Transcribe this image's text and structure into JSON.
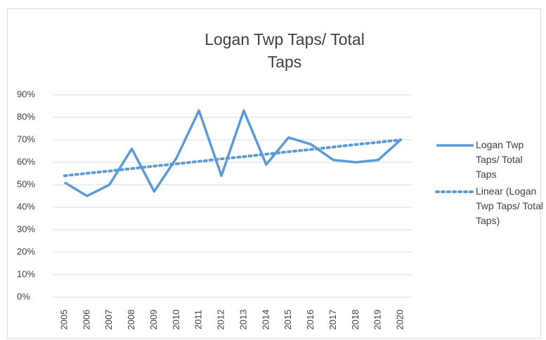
{
  "chart_data": {
    "type": "line",
    "title": "Logan Twp Taps/ Total Taps",
    "categories": [
      "2005",
      "2006",
      "2007",
      "2008",
      "2009",
      "2010",
      "2011",
      "2012",
      "2013",
      "2014",
      "2015",
      "2016",
      "2017",
      "2018",
      "2019",
      "2020"
    ],
    "series": [
      {
        "name": "Logan Twp Taps/ Total Taps",
        "color": "#5b9bd5",
        "values": [
          51,
          45,
          50,
          66,
          47,
          62,
          83,
          54,
          83,
          59,
          71,
          68,
          61,
          60,
          61,
          70
        ]
      },
      {
        "name": "Linear (Logan Twp Taps/ Total Taps)",
        "color": "#5b9bd5",
        "style": "dotted",
        "values": [
          54.0,
          55.1,
          56.1,
          57.2,
          58.3,
          59.3,
          60.4,
          61.5,
          62.5,
          63.6,
          64.7,
          65.7,
          66.8,
          67.9,
          68.9,
          70.0
        ]
      }
    ],
    "ylim": [
      0,
      90
    ],
    "yticks": [
      {
        "value": 0,
        "label": "0%"
      },
      {
        "value": 10,
        "label": "10%"
      },
      {
        "value": 20,
        "label": "20%"
      },
      {
        "value": 30,
        "label": "30%"
      },
      {
        "value": 40,
        "label": "40%"
      },
      {
        "value": 50,
        "label": "50%"
      },
      {
        "value": 60,
        "label": "60%"
      },
      {
        "value": 70,
        "label": "70%"
      },
      {
        "value": 80,
        "label": "80%"
      },
      {
        "value": 90,
        "label": "90%"
      }
    ],
    "grid": true,
    "legend": "right"
  }
}
